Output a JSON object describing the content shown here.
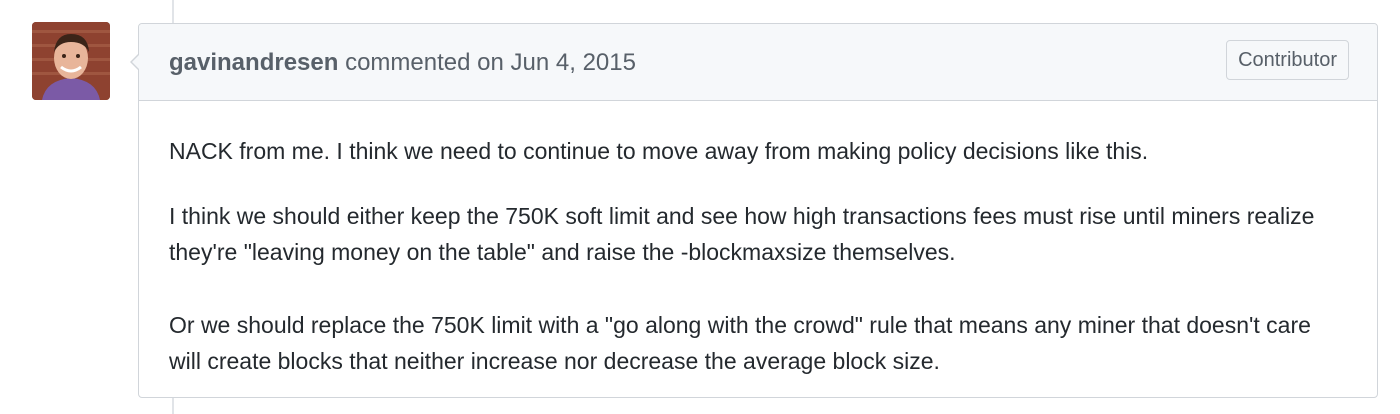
{
  "comment": {
    "author": "gavinandresen",
    "action": "commented on",
    "date": "Jun 4, 2015",
    "badge": "Contributor",
    "paragraphs": [
      "NACK from me. I think we need to continue to move away from making policy decisions like this.",
      "I think we should either keep the 750K soft limit and see how high transactions fees must rise until miners realize they're \"leaving money on the table\" and raise the -blockmaxsize themselves.",
      "Or we should replace the 750K limit with a \"go along with the crowd\" rule that means any miner that doesn't care will create blocks that neither increase nor decrease the average block size."
    ]
  },
  "icons": {
    "avatar": "avatar-photo"
  },
  "colors": {
    "header_bg": "#f6f8fa",
    "border": "#d1d5da",
    "muted_text": "#586069",
    "body_text": "#24292e"
  }
}
